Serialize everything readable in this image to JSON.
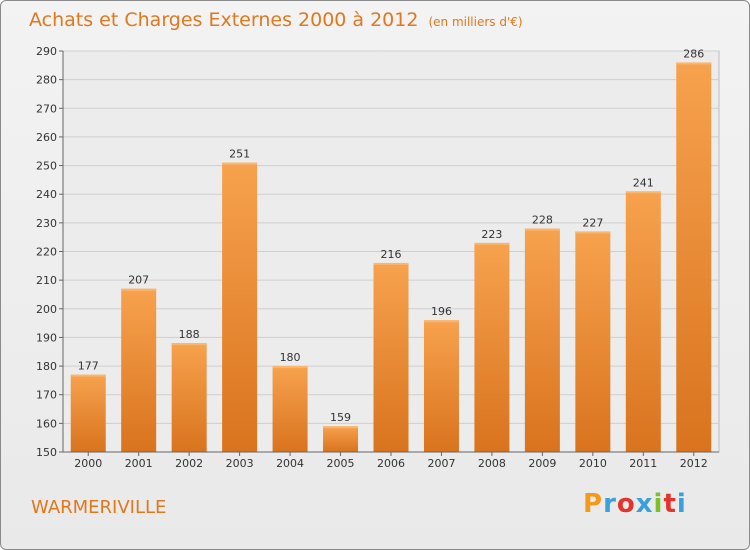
{
  "title": "Achats et Charges Externes 2000 à 2012",
  "subtitle": "(en milliers d'€)",
  "city": "WARMERIVILLE",
  "brand": {
    "letters": [
      "P",
      "r",
      "o",
      "x",
      "i",
      "t",
      "i"
    ],
    "colors": [
      "#f29a1b",
      "#3aa0dc",
      "#e4332b",
      "#3aa0dc",
      "#7bbf2a",
      "#e4332b",
      "#3aa0dc"
    ]
  },
  "colors": {
    "bar_light": "#f7a24e",
    "bar_dark": "#d9731e",
    "accent": "#e0781e"
  },
  "chart_data": {
    "type": "bar",
    "title": "Achats et Charges Externes 2000 à 2012",
    "subtitle": "(en milliers d'€)",
    "categories": [
      "2000",
      "2001",
      "2002",
      "2003",
      "2004",
      "2005",
      "2006",
      "2007",
      "2008",
      "2009",
      "2010",
      "2011",
      "2012"
    ],
    "values": [
      177,
      207,
      188,
      251,
      180,
      159,
      216,
      196,
      223,
      228,
      227,
      241,
      286
    ],
    "ylim": [
      150,
      290
    ],
    "yticks": [
      150,
      160,
      170,
      180,
      190,
      200,
      210,
      220,
      230,
      240,
      250,
      260,
      270,
      280,
      290
    ],
    "grid": true,
    "legend": "none"
  }
}
